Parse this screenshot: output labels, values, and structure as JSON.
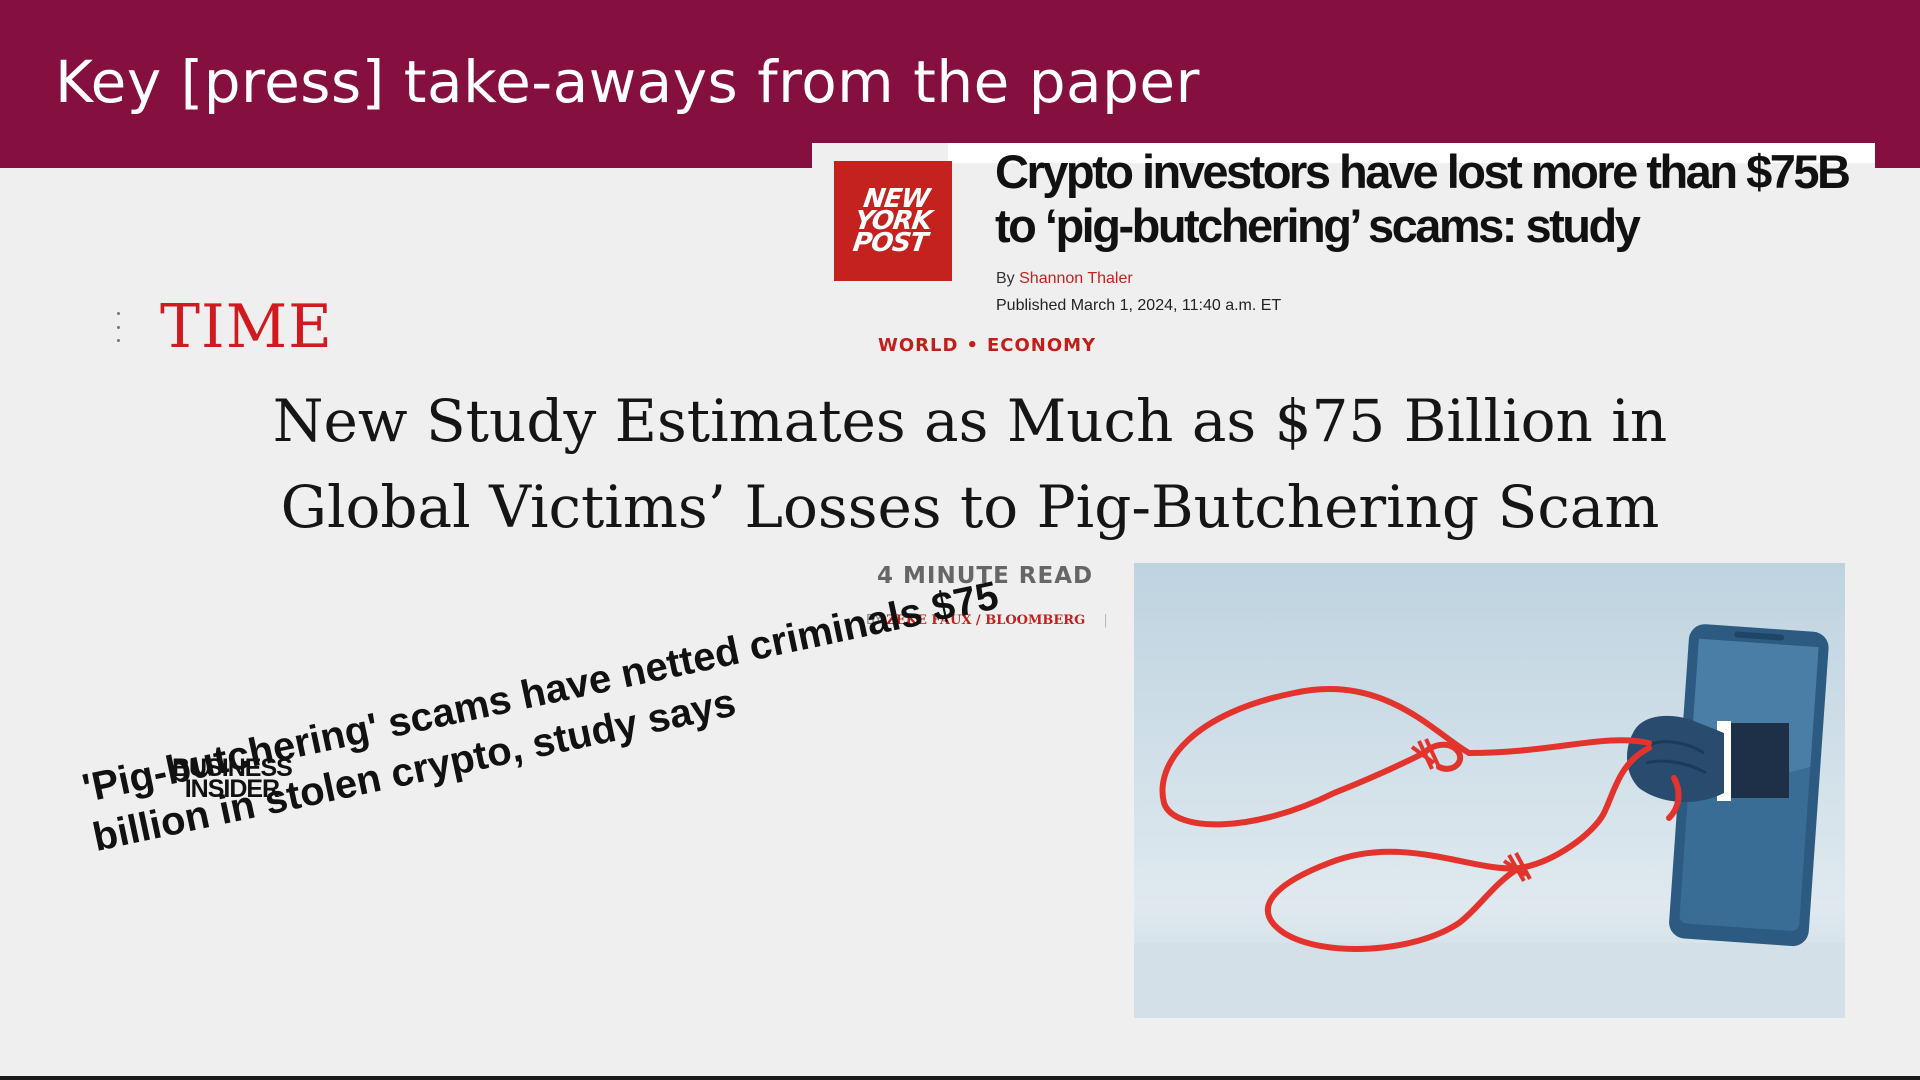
{
  "slide": {
    "title": "Key [press] take-aways from the paper"
  },
  "ny_post": {
    "logo_text": "NEW\nYORK\nPOST",
    "headline": "Crypto investors have lost more than $75B to ‘pig-butchering’ scams: study",
    "byline_prefix": "By",
    "author": "Shannon Thaler",
    "published": "Published March 1, 2024, 11:40 a.m. ET"
  },
  "time": {
    "logo": "TIME",
    "section_1": "WORLD",
    "section_separator": "•",
    "section_2": "ECONOMY",
    "headline": "New Study Estimates as Much as $75 Billion in Global Victims’ Losses to Pig-Butchering Scam",
    "read_time": "4 MINUTE READ",
    "byline_prefix": "BY",
    "author": "ZEKE FAUX / BLOOMBERG"
  },
  "business_insider": {
    "logo_text": "BUSINESS\nINSIDER",
    "headline": "'Pig-butchering' scams have netted criminals $75 billion in stolen crypto, study says"
  },
  "illustration": {
    "icon": "phone-hand-rope-illustration",
    "colors": {
      "background_top": "#c6d9e5",
      "background_bottom": "#e8eff3",
      "phone": "#2e5f87",
      "rope": "#e2342d"
    }
  },
  "colors": {
    "header": "#851040",
    "time_red": "#d11a1f",
    "nyp_red": "#c4221f"
  }
}
